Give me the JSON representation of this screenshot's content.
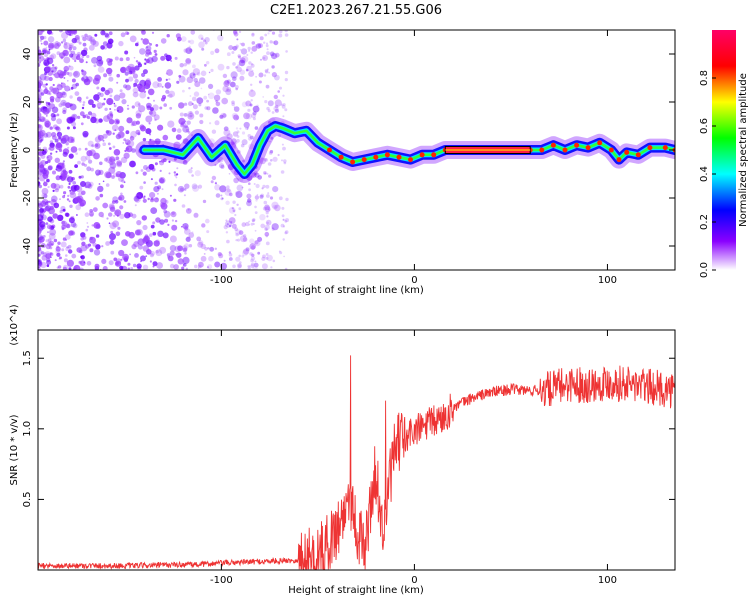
{
  "figure_title": "C2E1.2023.267.21.55.G06",
  "chart_data": [
    {
      "type": "heatmap",
      "title": "C2E1.2023.267.21.55.G06",
      "xlabel": "Height of straight line (km)",
      "ylabel": "Frequency (Hz)",
      "xlim": [
        -195,
        135
      ],
      "ylim": [
        -50,
        50
      ],
      "x_ticks": [
        -100,
        0,
        100
      ],
      "y_ticks": [
        -40,
        -20,
        0,
        20,
        40
      ],
      "colorbar": {
        "label": "Normalized spectral amplitude",
        "range": [
          0,
          1
        ],
        "ticks": [
          0.0,
          0.2,
          0.4,
          0.6,
          0.8
        ],
        "colormap": [
          "#ffffff",
          "#8a00ff",
          "#0000ff",
          "#00ffff",
          "#00ff00",
          "#ffff00",
          "#ff0000",
          "#ff0066"
        ]
      },
      "ridge": {
        "x": [
          -140,
          -130,
          -120,
          -112,
          -105,
          -98,
          -92,
          -88,
          -84,
          -80,
          -76,
          -72,
          -68,
          -62,
          -56,
          -50,
          -44,
          -38,
          -32,
          -26,
          -20,
          -14,
          -8,
          -2,
          4,
          10,
          16,
          60,
          66,
          72,
          78,
          84,
          90,
          96,
          102,
          106,
          110,
          116,
          122,
          130,
          135
        ],
        "y": [
          0,
          0,
          -2,
          5,
          -3,
          2,
          -6,
          -10,
          -6,
          2,
          8,
          10,
          9,
          7,
          8,
          3,
          0,
          -3,
          -5,
          -4,
          -3,
          -2,
          -3,
          -4,
          -2,
          -2,
          0,
          0,
          0,
          2,
          0,
          2,
          1,
          3,
          0,
          -4,
          -1,
          -2,
          1,
          1,
          0
        ]
      },
      "constant_segment": {
        "x": [
          16,
          60
        ],
        "y": 0
      }
    },
    {
      "type": "line",
      "xlabel": "Height of straight line (km)",
      "ylabel": "SNR (10 * v/v)",
      "y_multiplier": "(x10^4)",
      "xlim": [
        -195,
        135
      ],
      "ylim": [
        0,
        1.7
      ],
      "x_ticks": [
        -100,
        0,
        100
      ],
      "y_ticks": [
        0.5,
        1.0,
        1.5
      ],
      "color": "#ee3333",
      "series": [
        {
          "x": [
            -195,
            -150,
            -110,
            -100,
            -80,
            -60,
            -50,
            -45,
            -42,
            -40,
            -38,
            -36,
            -34,
            -32,
            -30,
            -28,
            -26,
            -24,
            -22,
            -20,
            -18,
            -16,
            -14,
            -12,
            -10,
            -8,
            -6,
            -4,
            -2,
            0,
            5,
            10,
            15,
            20,
            30,
            40,
            50,
            60,
            70,
            80,
            90,
            100,
            110,
            120,
            135
          ],
          "y": [
            0.03,
            0.03,
            0.04,
            0.05,
            0.06,
            0.07,
            0.1,
            0.18,
            0.25,
            0.3,
            0.35,
            0.42,
            0.55,
            0.45,
            0.3,
            0.22,
            0.15,
            0.3,
            0.55,
            0.7,
            0.45,
            0.25,
            0.5,
            0.7,
            0.85,
            0.9,
            0.95,
            0.9,
            0.98,
            0.98,
            1.02,
            1.05,
            1.08,
            1.15,
            1.22,
            1.26,
            1.28,
            1.27,
            1.28,
            1.32,
            1.31,
            1.33,
            1.32,
            1.3,
            1.27
          ]
        }
      ],
      "peaks": {
        "x": [
          -33,
          -15
        ],
        "y": [
          1.52,
          1.2
        ]
      }
    }
  ]
}
